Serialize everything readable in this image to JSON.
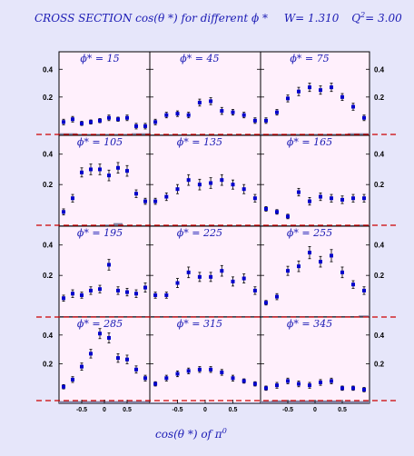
{
  "figure": {
    "title_prefix": "CROSS SECTION  cos(θ *)     for different  ϕ *",
    "title_w": "W= 1.310",
    "title_q2": "Q",
    "title_q2_sup": "2",
    "title_q2_val": "= 3.00",
    "xlabel_main": "cos(θ *)  of  π",
    "xlabel_sup": "0",
    "colors": {
      "panel": "#fff0fc",
      "points": "#0000cc",
      "error": "#000000",
      "band": "#8080a0",
      "dash": "#cc0000"
    }
  },
  "chart_data": [
    {
      "type": "scatter",
      "panel_label": "ϕ* = 15",
      "yticks": [
        "0.4",
        "0.2"
      ],
      "ylim": [
        -0.05,
        0.5
      ],
      "xlim": [
        -1,
        1
      ],
      "x": [
        -0.9,
        -0.7,
        -0.5,
        -0.3,
        -0.1,
        0.1,
        0.3,
        0.5,
        0.7,
        0.9
      ],
      "series": [
        {
          "values": [
            0.02,
            0.04,
            0.01,
            0.02,
            0.03,
            0.05,
            0.04,
            0.05,
            -0.01,
            -0.01
          ],
          "errors": [
            0.02,
            0.02,
            0.015,
            0.015,
            0.015,
            0.02,
            0.015,
            0.02,
            0.02,
            0.02
          ]
        }
      ],
      "systematic": [
        0.015,
        0.015,
        0.01,
        0.01,
        0.01,
        0.01,
        0.01,
        0.01,
        0.015,
        0.015
      ]
    },
    {
      "type": "scatter",
      "panel_label": "ϕ* = 45",
      "yticks": [],
      "ylim": [
        -0.05,
        0.5
      ],
      "xlim": [
        -1,
        1
      ],
      "x": [
        -0.9,
        -0.7,
        -0.5,
        -0.3,
        -0.1,
        0.1,
        0.3,
        0.5,
        0.7,
        0.9
      ],
      "series": [
        {
          "values": [
            0.02,
            0.07,
            0.08,
            0.07,
            0.16,
            0.17,
            0.1,
            0.09,
            0.07,
            0.03
          ],
          "errors": [
            0.02,
            0.02,
            0.02,
            0.02,
            0.025,
            0.025,
            0.025,
            0.02,
            0.02,
            0.02
          ]
        }
      ],
      "systematic": [
        0.005,
        0.005,
        0.005,
        0.005,
        0.005,
        0.005,
        0.005,
        0.005,
        0.005,
        0.005
      ]
    },
    {
      "type": "scatter",
      "panel_label": "ϕ* = 75",
      "yticks": [
        "0.4",
        "0.2"
      ],
      "ylim": [
        -0.05,
        0.5
      ],
      "xlim": [
        -1,
        1
      ],
      "x": [
        -0.9,
        -0.7,
        -0.5,
        -0.3,
        -0.1,
        0.1,
        0.3,
        0.5,
        0.7,
        0.9
      ],
      "series": [
        {
          "values": [
            0.03,
            0.09,
            0.19,
            0.24,
            0.27,
            0.25,
            0.27,
            0.2,
            0.13,
            0.05
          ],
          "errors": [
            0.02,
            0.02,
            0.025,
            0.03,
            0.03,
            0.03,
            0.03,
            0.025,
            0.025,
            0.02
          ]
        }
      ],
      "systematic": [
        0.01,
        0.01,
        0.01,
        0.01,
        0.01,
        0.01,
        0.01,
        0.01,
        0.015,
        0.015
      ]
    },
    {
      "type": "scatter",
      "panel_label": "ϕ* = 105",
      "yticks": [
        "0.4",
        "0.2"
      ],
      "ylim": [
        -0.05,
        0.5
      ],
      "xlim": [
        -1,
        1
      ],
      "x": [
        -0.9,
        -0.7,
        -0.5,
        -0.3,
        -0.1,
        0.1,
        0.3,
        0.5,
        0.7,
        0.9
      ],
      "series": [
        {
          "values": [
            0.02,
            0.11,
            0.28,
            0.3,
            0.3,
            0.26,
            0.31,
            0.29,
            0.14,
            0.09
          ],
          "errors": [
            0.02,
            0.025,
            0.03,
            0.035,
            0.035,
            0.035,
            0.035,
            0.035,
            0.025,
            0.02
          ]
        }
      ],
      "systematic": [
        0.005,
        0.005,
        0.005,
        0.005,
        0.005,
        0.01,
        0.02,
        0.005,
        0.005,
        0.005
      ]
    },
    {
      "type": "scatter",
      "panel_label": "ϕ* = 135",
      "yticks": [],
      "ylim": [
        -0.05,
        0.5
      ],
      "xlim": [
        -1,
        1
      ],
      "x": [
        -0.9,
        -0.7,
        -0.5,
        -0.3,
        -0.1,
        0.1,
        0.3,
        0.5,
        0.7,
        0.9
      ],
      "series": [
        {
          "values": [
            0.09,
            0.12,
            0.17,
            0.23,
            0.2,
            0.21,
            0.23,
            0.2,
            0.17,
            0.11
          ],
          "errors": [
            0.02,
            0.025,
            0.03,
            0.035,
            0.035,
            0.035,
            0.035,
            0.03,
            0.03,
            0.025
          ]
        }
      ],
      "systematic": [
        0.005,
        0.005,
        0.005,
        0.005,
        0.005,
        0.005,
        0.005,
        0.005,
        0.005,
        0.005
      ]
    },
    {
      "type": "scatter",
      "panel_label": "ϕ* = 165",
      "yticks": [
        "0.4",
        "0.2"
      ],
      "ylim": [
        -0.05,
        0.5
      ],
      "xlim": [
        -1,
        1
      ],
      "x": [
        -0.9,
        -0.7,
        -0.5,
        -0.3,
        -0.1,
        0.1,
        0.3,
        0.5,
        0.7,
        0.9
      ],
      "series": [
        {
          "values": [
            0.04,
            0.02,
            -0.01,
            0.15,
            0.09,
            0.12,
            0.11,
            0.1,
            0.11,
            0.11
          ],
          "errors": [
            0.015,
            0.015,
            0.015,
            0.025,
            0.025,
            0.025,
            0.025,
            0.025,
            0.025,
            0.025
          ]
        }
      ],
      "systematic": [
        0.005,
        0.005,
        0.005,
        0.005,
        0.005,
        0.005,
        0.005,
        0.005,
        0.005,
        0.01
      ]
    },
    {
      "type": "scatter",
      "panel_label": "ϕ* = 195",
      "yticks": [
        "0.4",
        "0.2"
      ],
      "ylim": [
        -0.05,
        0.5
      ],
      "xlim": [
        -1,
        1
      ],
      "x": [
        -0.9,
        -0.7,
        -0.5,
        -0.3,
        -0.1,
        0.1,
        0.3,
        0.5,
        0.7,
        0.9
      ],
      "series": [
        {
          "values": [
            0.05,
            0.08,
            0.07,
            0.1,
            0.11,
            0.27,
            0.1,
            0.09,
            0.08,
            0.12
          ],
          "errors": [
            0.02,
            0.025,
            0.02,
            0.025,
            0.025,
            0.035,
            0.025,
            0.025,
            0.025,
            0.03
          ]
        }
      ],
      "systematic": [
        0.005,
        0.005,
        0.005,
        0.005,
        0.005,
        0.005,
        0.005,
        0.005,
        0.005,
        0.005
      ]
    },
    {
      "type": "scatter",
      "panel_label": "ϕ* = 225",
      "yticks": [],
      "ylim": [
        -0.05,
        0.5
      ],
      "xlim": [
        -1,
        1
      ],
      "x": [
        -0.9,
        -0.7,
        -0.5,
        -0.3,
        -0.1,
        0.1,
        0.3,
        0.5,
        0.7,
        0.9
      ],
      "series": [
        {
          "values": [
            0.07,
            0.07,
            0.15,
            0.22,
            0.19,
            0.19,
            0.23,
            0.16,
            0.18,
            0.1
          ],
          "errors": [
            0.02,
            0.02,
            0.03,
            0.035,
            0.03,
            0.03,
            0.035,
            0.03,
            0.03,
            0.025
          ]
        }
      ],
      "systematic": [
        0.005,
        0.005,
        0.005,
        0.005,
        0.005,
        0.005,
        0.005,
        0.005,
        0.005,
        0.005
      ]
    },
    {
      "type": "scatter",
      "panel_label": "ϕ* = 255",
      "yticks": [
        "0.4",
        "0.2"
      ],
      "ylim": [
        -0.05,
        0.5
      ],
      "xlim": [
        -1,
        1
      ],
      "x": [
        -0.9,
        -0.7,
        -0.5,
        -0.3,
        -0.1,
        0.1,
        0.3,
        0.5,
        0.7,
        0.9
      ],
      "series": [
        {
          "values": [
            0.02,
            0.06,
            0.23,
            0.26,
            0.35,
            0.29,
            0.33,
            0.22,
            0.14,
            0.1
          ],
          "errors": [
            0.015,
            0.02,
            0.03,
            0.035,
            0.04,
            0.035,
            0.04,
            0.035,
            0.025,
            0.025
          ]
        }
      ],
      "systematic": [
        0.005,
        0.005,
        0.005,
        0.005,
        0.005,
        0.005,
        0.005,
        0.005,
        0.005,
        0.01
      ]
    },
    {
      "type": "scatter",
      "panel_label": "ϕ* = 285",
      "yticks": [
        "0.4",
        "0.2"
      ],
      "ylim": [
        -0.05,
        0.5
      ],
      "xlim": [
        -1,
        1
      ],
      "x": [
        -0.9,
        -0.7,
        -0.5,
        -0.3,
        -0.1,
        0.1,
        0.3,
        0.5,
        0.7,
        0.9
      ],
      "series": [
        {
          "values": [
            0.04,
            0.09,
            0.18,
            0.27,
            0.41,
            0.38,
            0.24,
            0.23,
            0.16,
            0.1
          ],
          "errors": [
            0.015,
            0.02,
            0.025,
            0.03,
            0.035,
            0.035,
            0.03,
            0.03,
            0.025,
            0.02
          ]
        }
      ],
      "systematic": [
        0.015,
        0.015,
        0.015,
        0.015,
        0.015,
        0.015,
        0.015,
        0.015,
        0.015,
        0.015
      ]
    },
    {
      "type": "scatter",
      "panel_label": "ϕ* = 315",
      "yticks": [],
      "ylim": [
        -0.05,
        0.5
      ],
      "xlim": [
        -1,
        1
      ],
      "x": [
        -0.9,
        -0.7,
        -0.5,
        -0.3,
        -0.1,
        0.1,
        0.3,
        0.5,
        0.7,
        0.9
      ],
      "series": [
        {
          "values": [
            0.06,
            0.1,
            0.13,
            0.15,
            0.16,
            0.16,
            0.14,
            0.1,
            0.08,
            0.06
          ],
          "errors": [
            0.015,
            0.02,
            0.02,
            0.02,
            0.02,
            0.02,
            0.02,
            0.02,
            0.015,
            0.015
          ]
        }
      ],
      "systematic": [
        0.005,
        0.005,
        0.005,
        0.005,
        0.005,
        0.005,
        0.005,
        0.005,
        0.005,
        0.005
      ]
    },
    {
      "type": "scatter",
      "panel_label": "ϕ* = 345",
      "yticks": [
        "0.4",
        "0.2"
      ],
      "ylim": [
        -0.05,
        0.5
      ],
      "xlim": [
        -1,
        1
      ],
      "x": [
        -0.9,
        -0.7,
        -0.5,
        -0.3,
        -0.1,
        0.1,
        0.3,
        0.5,
        0.7,
        0.9
      ],
      "series": [
        {
          "values": [
            0.03,
            0.05,
            0.08,
            0.06,
            0.05,
            0.07,
            0.08,
            0.03,
            0.03,
            0.02
          ],
          "errors": [
            0.015,
            0.02,
            0.02,
            0.02,
            0.02,
            0.02,
            0.02,
            0.015,
            0.015,
            0.015
          ]
        }
      ],
      "systematic": [
        0.015,
        0.02,
        0.02,
        0.02,
        0.02,
        0.02,
        0.02,
        0.015,
        0.015,
        0.015
      ]
    }
  ],
  "xticks": [
    "-0.5",
    "0",
    "0.5"
  ]
}
